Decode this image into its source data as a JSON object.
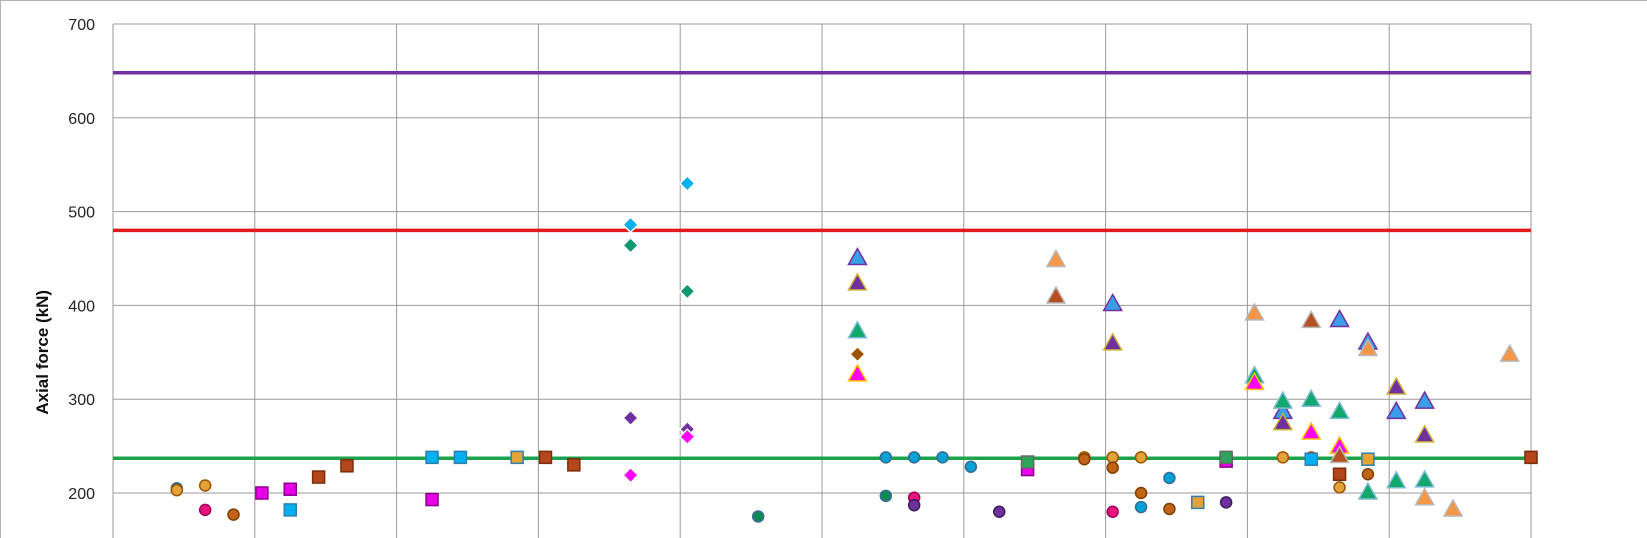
{
  "chart_data": {
    "type": "scatter",
    "ylabel": "Axial force (kN)",
    "ylim": [
      170,
      700
    ],
    "yticks": [
      "200",
      "300",
      "400",
      "500",
      "600",
      "700"
    ],
    "ytick_values": [
      200,
      300,
      400,
      500,
      600,
      700
    ],
    "xlim": [
      0,
      100
    ],
    "x_gridlines": [
      0,
      10,
      20,
      30,
      40,
      50,
      60,
      70,
      80,
      90,
      100
    ],
    "grid": true,
    "reference_lines": [
      {
        "value": 648,
        "color": "#7030a0"
      },
      {
        "value": 480,
        "color": "#e31a1c"
      },
      {
        "value": 237,
        "color": "#1aa34a"
      }
    ],
    "series": [
      {
        "marker": "diamond",
        "fill": "#00b0f0",
        "edge": "#ffffff",
        "points": [
          [
            36.5,
            486
          ],
          [
            40.5,
            530
          ]
        ]
      },
      {
        "marker": "diamond",
        "fill": "#0e9a6e",
        "edge": "#ffffff",
        "points": [
          [
            36.5,
            464
          ],
          [
            40.5,
            415
          ]
        ]
      },
      {
        "marker": "diamond",
        "fill": "#7030a0",
        "edge": "#ffffff",
        "points": [
          [
            36.5,
            280
          ],
          [
            40.5,
            268
          ]
        ]
      },
      {
        "marker": "diamond",
        "fill": "#ff00ff",
        "edge": "#ffffff",
        "points": [
          [
            36.5,
            219
          ],
          [
            40.5,
            260
          ]
        ]
      },
      {
        "marker": "diamond",
        "fill": "#9c5400",
        "edge": "#ffffff",
        "points": [
          [
            52.5,
            348
          ]
        ]
      },
      {
        "marker": "triangle",
        "fill": "#3a9fe8",
        "edge": "#7030a0",
        "points": [
          [
            52.5,
            451
          ],
          [
            70.5,
            402
          ],
          [
            82.5,
            287
          ],
          [
            86.5,
            385
          ],
          [
            88.5,
            361
          ],
          [
            90.5,
            287
          ],
          [
            92.5,
            298
          ]
        ]
      },
      {
        "marker": "triangle",
        "fill": "#7030a0",
        "edge": "#c9b037",
        "points": [
          [
            52.5,
            424
          ],
          [
            70.5,
            360
          ],
          [
            82.5,
            275
          ],
          [
            90.5,
            313
          ],
          [
            92.5,
            262
          ]
        ]
      },
      {
        "marker": "triangle",
        "fill": "#11a86b",
        "edge": "#7fbad6",
        "points": [
          [
            52.5,
            373
          ],
          [
            80.5,
            325
          ],
          [
            82.5,
            298
          ],
          [
            84.5,
            300
          ],
          [
            86.5,
            287
          ],
          [
            88.5,
            201
          ],
          [
            90.5,
            213
          ],
          [
            92.5,
            214
          ]
        ]
      },
      {
        "marker": "triangle",
        "fill": "#ff00ff",
        "edge": "#ffc000",
        "points": [
          [
            52.5,
            327
          ],
          [
            80.5,
            318
          ],
          [
            84.5,
            265
          ],
          [
            86.5,
            250
          ]
        ]
      },
      {
        "marker": "triangle",
        "fill": "#f79646",
        "edge": "#b7b7b7",
        "points": [
          [
            66.5,
            449
          ],
          [
            80.5,
            392
          ],
          [
            88.5,
            354
          ],
          [
            92.5,
            195
          ],
          [
            94.5,
            183
          ],
          [
            98.5,
            348
          ]
        ]
      },
      {
        "marker": "triangle",
        "fill": "#b54f1f",
        "edge": "#b7b7b7",
        "points": [
          [
            66.5,
            410
          ],
          [
            84.5,
            384
          ],
          [
            86.5,
            240
          ]
        ]
      },
      {
        "marker": "circle",
        "fill": "#00a0d8",
        "edge": "#3d6b8f",
        "points": [
          [
            54.5,
            238
          ],
          [
            56.5,
            238
          ],
          [
            58.5,
            238
          ],
          [
            60.5,
            228
          ],
          [
            72.5,
            185
          ],
          [
            74.5,
            216
          ]
        ]
      },
      {
        "marker": "circle",
        "fill": "#0b8a57",
        "edge": "#3d6b8f",
        "points": [
          [
            4.5,
            205
          ],
          [
            54.5,
            197
          ],
          [
            45.5,
            175
          ]
        ]
      },
      {
        "marker": "circle",
        "fill": "#e2a33a",
        "edge": "#9c5400",
        "points": [
          [
            4.5,
            203
          ],
          [
            6.5,
            208
          ],
          [
            68.5,
            238
          ],
          [
            70.5,
            238
          ],
          [
            72.5,
            238
          ],
          [
            82.5,
            238
          ],
          [
            84.5,
            238
          ],
          [
            86.5,
            206
          ]
        ]
      },
      {
        "marker": "circle",
        "fill": "#c0641a",
        "edge": "#7f3f00",
        "points": [
          [
            8.5,
            177
          ],
          [
            68.5,
            236
          ],
          [
            70.5,
            227
          ],
          [
            72.5,
            200
          ],
          [
            74.5,
            183
          ],
          [
            88.5,
            220
          ]
        ]
      },
      {
        "marker": "circle",
        "fill": "#e8127c",
        "edge": "#a0005a",
        "points": [
          [
            6.5,
            182
          ],
          [
            56.5,
            195
          ],
          [
            70.5,
            180
          ]
        ]
      },
      {
        "marker": "circle",
        "fill": "#7030a0",
        "edge": "#3b1d5a",
        "points": [
          [
            56.5,
            187
          ],
          [
            62.5,
            180
          ],
          [
            78.5,
            190
          ]
        ]
      },
      {
        "marker": "square",
        "fill": "#00b0f0",
        "edge": "#2f7fb3",
        "points": [
          [
            12.5,
            182
          ],
          [
            22.5,
            238
          ],
          [
            24.5,
            238
          ],
          [
            84.5,
            236
          ]
        ]
      },
      {
        "marker": "square",
        "fill": "#e800e8",
        "edge": "#8a008a",
        "points": [
          [
            10.5,
            200
          ],
          [
            12.5,
            204
          ],
          [
            22.5,
            193
          ],
          [
            64.5,
            225
          ],
          [
            78.5,
            234
          ]
        ]
      },
      {
        "marker": "square",
        "fill": "#b5451b",
        "edge": "#7a2c0b",
        "points": [
          [
            14.5,
            217
          ],
          [
            16.5,
            229
          ],
          [
            30.5,
            238
          ],
          [
            32.5,
            230
          ],
          [
            86.5,
            220
          ],
          [
            100,
            238
          ]
        ]
      },
      {
        "marker": "square",
        "fill": "#e2a33a",
        "edge": "#2f7fb3",
        "points": [
          [
            28.5,
            238
          ],
          [
            76.5,
            190
          ],
          [
            88.5,
            236
          ]
        ]
      },
      {
        "marker": "square",
        "fill": "#2aa55a",
        "edge": "#666666",
        "points": [
          [
            64.5,
            233
          ],
          [
            78.5,
            238
          ]
        ]
      }
    ]
  }
}
